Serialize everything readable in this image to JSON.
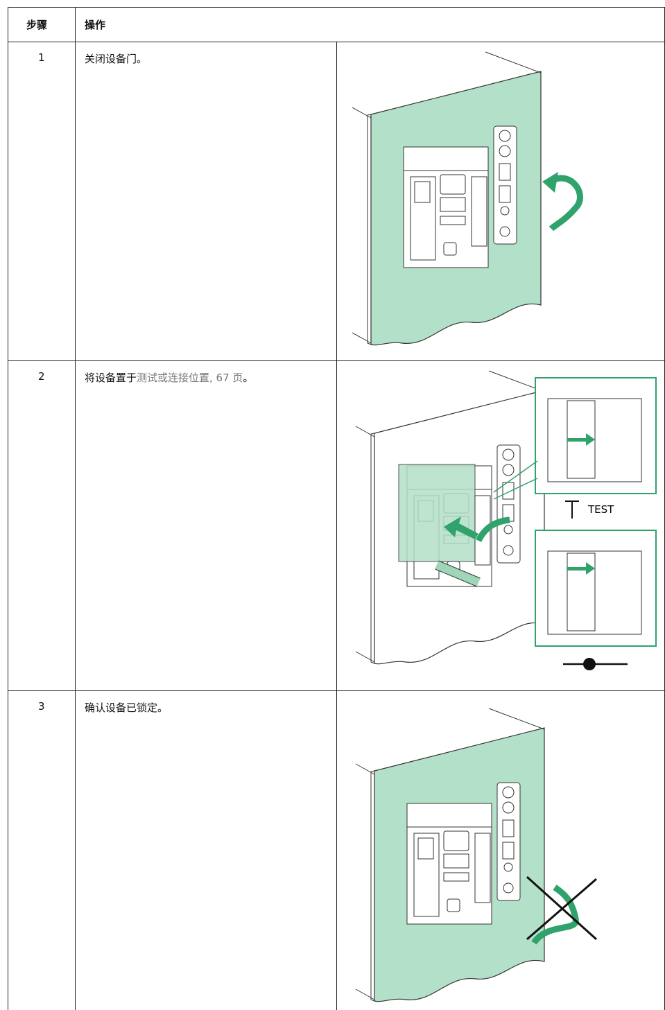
{
  "table": {
    "header": [
      "步骤",
      "操作"
    ],
    "rows": [
      {
        "step": 1,
        "text": [
          "关闭设备门。"
        ]
      },
      {
        "step": 2,
        "text": [
          "将设备置于",
          "测试或连接位置, 67 页",
          "。"
        ]
      },
      {
        "step": 3,
        "text": [
          "确认设备已锁定。"
        ]
      }
    ]
  },
  "figures": {
    "test_label": "TEST"
  }
}
